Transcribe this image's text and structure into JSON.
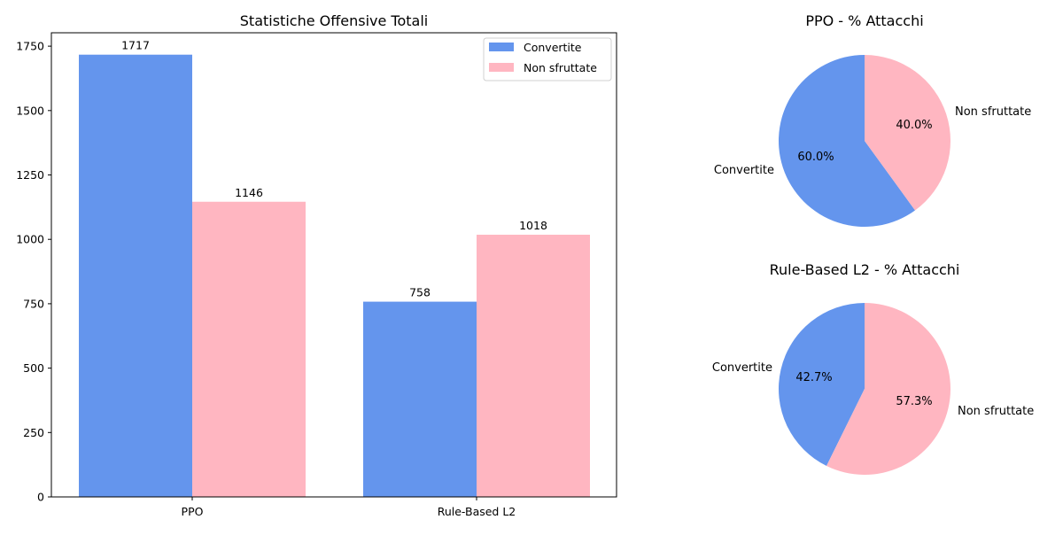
{
  "colors": {
    "convertite": "#6495ED",
    "non_sfruttate": "#FFB6C1"
  },
  "chart_data": [
    {
      "type": "bar",
      "title": "Statistiche Offensive Totali",
      "categories": [
        "PPO",
        "Rule-Based L2"
      ],
      "series": [
        {
          "name": "Convertite",
          "values": [
            1717,
            758
          ],
          "color": "#6495ED"
        },
        {
          "name": "Non sfruttate",
          "values": [
            1146,
            1018
          ],
          "color": "#FFB6C1"
        }
      ],
      "ylim": [
        0,
        1802
      ],
      "yticks": [
        0,
        250,
        500,
        750,
        1000,
        1250,
        1500,
        1750
      ],
      "legend_position": "top-right",
      "grid": false
    },
    {
      "type": "pie",
      "title": "PPO - % Attacchi",
      "labels": [
        "Convertite",
        "Non sfruttate"
      ],
      "values": [
        60.0,
        40.0
      ],
      "pct_labels": [
        "60.0%",
        "40.0%"
      ],
      "colors": [
        "#6495ED",
        "#FFB6C1"
      ]
    },
    {
      "type": "pie",
      "title": "Rule-Based L2 - % Attacchi",
      "labels": [
        "Convertite",
        "Non sfruttate"
      ],
      "values": [
        42.7,
        57.3
      ],
      "pct_labels": [
        "42.7%",
        "57.3%"
      ],
      "colors": [
        "#6495ED",
        "#FFB6C1"
      ]
    }
  ]
}
